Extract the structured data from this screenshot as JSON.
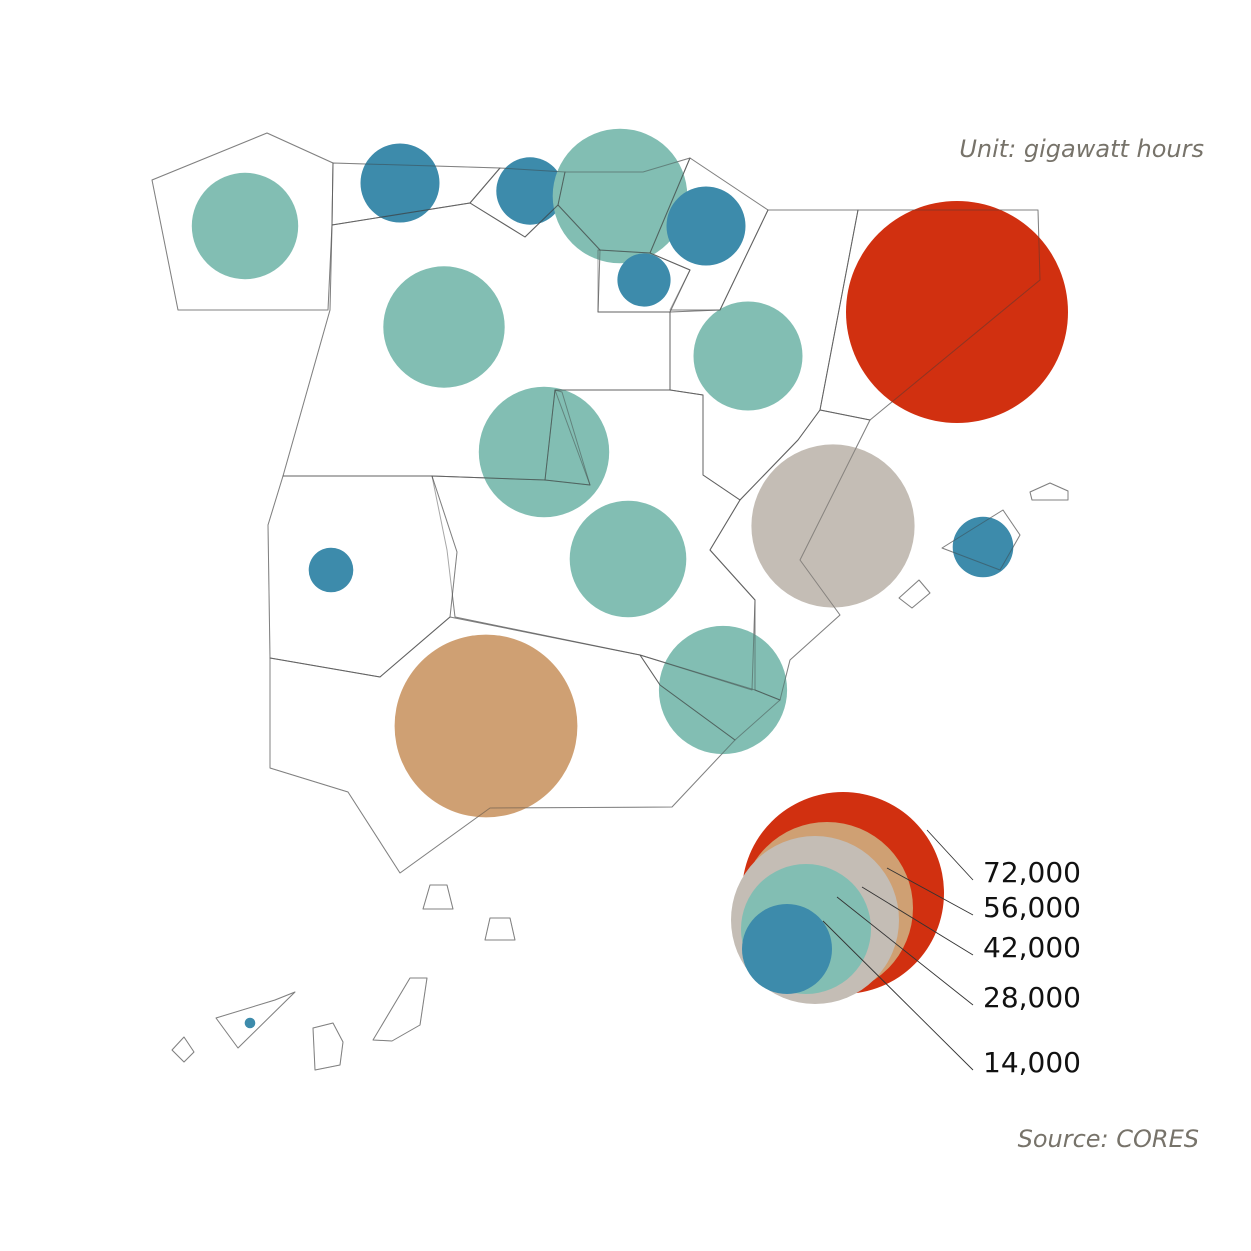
{
  "unit_note": "Unit: gigawatt hours",
  "source_note": "Source: CORES",
  "legend": [
    {
      "value": 72000,
      "label": "72,000",
      "color": "#d13010"
    },
    {
      "value": 56000,
      "label": "56,000",
      "color": "#cfa073"
    },
    {
      "value": 42000,
      "label": "42,000",
      "color": "#c4bdb5"
    },
    {
      "value": 28000,
      "label": "28,000",
      "color": "#82beb3"
    },
    {
      "value": 14000,
      "label": "14,000",
      "color": "#3d8bab"
    }
  ],
  "chart_data": {
    "type": "proportional-symbol map",
    "unit": "gigawatt hours",
    "note": "bubble area proportional to value; values estimated from legend circle sizes",
    "colors": {
      "72,000": "#d13010",
      "56,000": "#cfa073",
      "42,000": "#c4bdb5",
      "28,000": "#82beb3",
      "14,000": "#3d8bab"
    },
    "regions": [
      {
        "id": "galicia",
        "value": 20000,
        "color": "#82beb3"
      },
      {
        "id": "asturias",
        "value": 11000,
        "color": "#3d8bab"
      },
      {
        "id": "cantabria",
        "value": 8000,
        "color": "#3d8bab"
      },
      {
        "id": "basque-country",
        "value": 32000,
        "color": "#82beb3"
      },
      {
        "id": "navarre",
        "value": 11000,
        "color": "#3d8bab"
      },
      {
        "id": "la-rioja",
        "value": 5000,
        "color": "#3d8bab"
      },
      {
        "id": "castile-and-leon",
        "value": 26000,
        "color": "#82beb3"
      },
      {
        "id": "aragon",
        "value": 21000,
        "color": "#82beb3"
      },
      {
        "id": "catalonia",
        "value": 87000,
        "color": "#d13010"
      },
      {
        "id": "madrid",
        "value": 30000,
        "color": "#82beb3"
      },
      {
        "id": "castile-la-mancha",
        "value": 24000,
        "color": "#82beb3"
      },
      {
        "id": "valencian-community",
        "value": 47000,
        "color": "#c4bdb5"
      },
      {
        "id": "balearic-islands",
        "value": 6500,
        "color": "#3d8bab"
      },
      {
        "id": "extremadura",
        "value": 3500,
        "color": "#3d8bab"
      },
      {
        "id": "murcia",
        "value": 29000,
        "color": "#82beb3"
      },
      {
        "id": "andalusia",
        "value": 59000,
        "color": "#cfa073"
      },
      {
        "id": "canary-islands",
        "value": 200,
        "color": "#3d8bab"
      }
    ]
  }
}
